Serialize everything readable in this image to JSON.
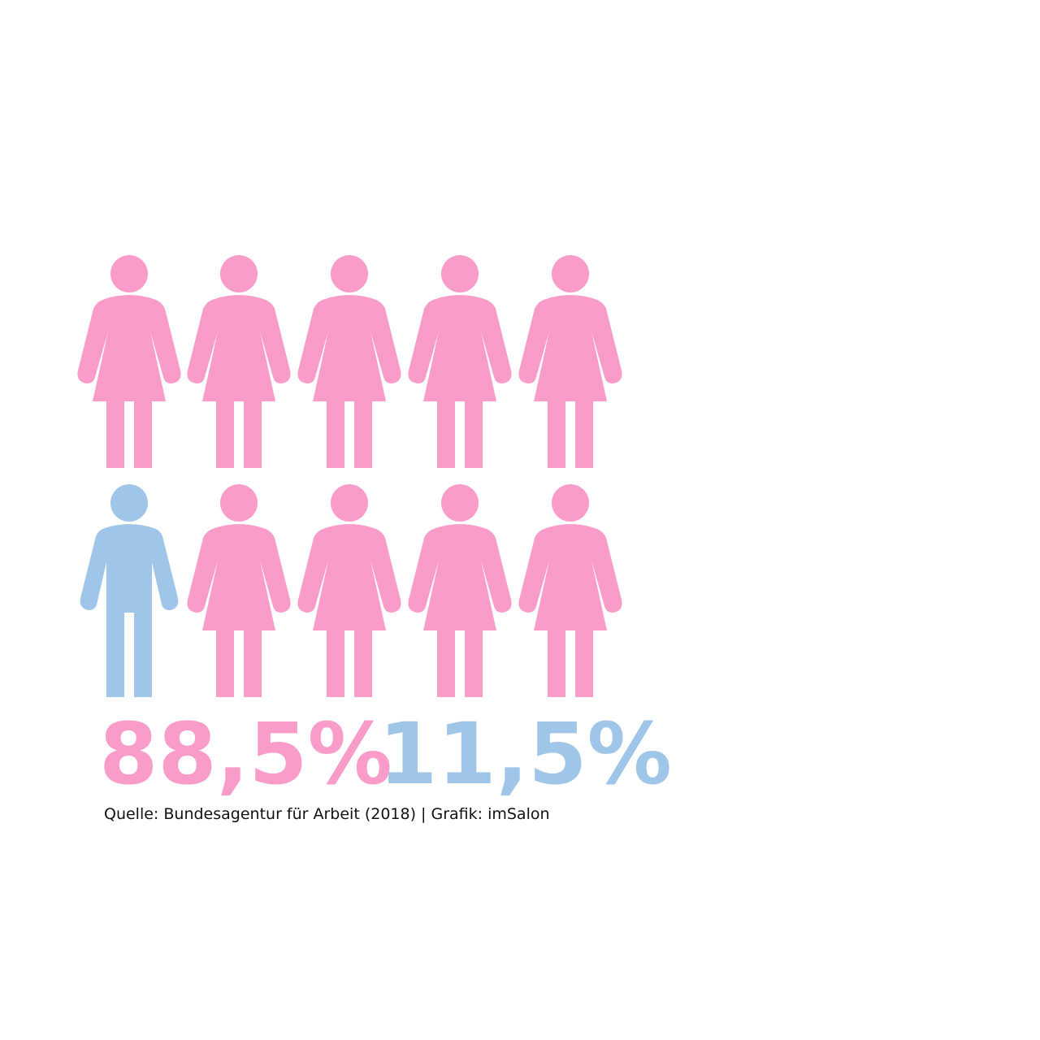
{
  "chart_data": {
    "type": "pictograph",
    "values": [
      88.5,
      11.5
    ],
    "value_labels": [
      "88,5%",
      "11,5%"
    ],
    "colors": [
      "#f99cc9",
      "#9fc5e8"
    ],
    "source": "Quelle: Bundesagentur für Arbeit (2018) | Grafik: imSalon"
  }
}
